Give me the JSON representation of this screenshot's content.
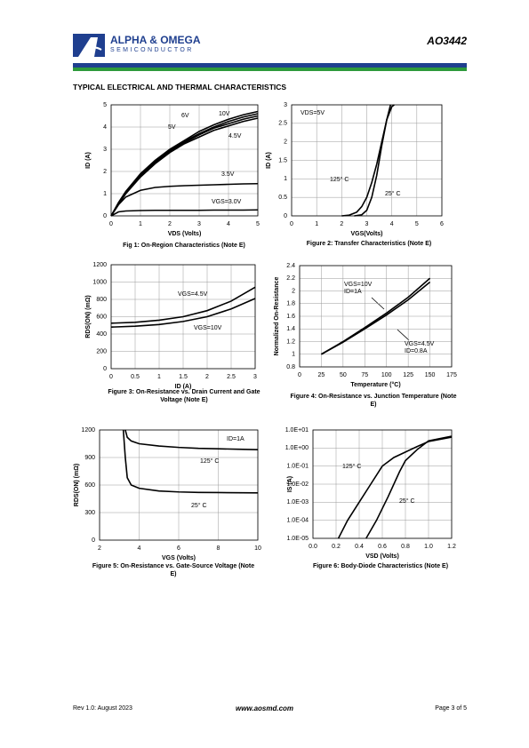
{
  "header": {
    "company": "ALPHA & OMEGA",
    "division": "SEMICONDUCTOR",
    "part": "AO3442"
  },
  "section_title": "TYPICAL ELECTRICAL AND THERMAL CHARACTERISTICS",
  "chart_data": [
    {
      "type": "line",
      "caption": "Fig 1: On-Region Characteristics (Note E)",
      "x_label": "VDS (Volts)",
      "y_label": "ID (A)",
      "xlim": [
        0,
        5
      ],
      "xticks": [
        0,
        1,
        2,
        3,
        4,
        5
      ],
      "ylim": [
        0,
        5
      ],
      "yticks": [
        0,
        1,
        2,
        3,
        4,
        5
      ],
      "grid": true,
      "annotations": [
        "6V",
        "10V",
        "5V",
        "4.5V",
        "3.5V",
        "VGS=3.0V"
      ],
      "series": [
        {
          "color": "#000000",
          "x": [
            0,
            0.25,
            0.5,
            1,
            1.5,
            2,
            2.5,
            3,
            3.5,
            4,
            4.5,
            5
          ],
          "values": [
            0,
            0.6,
            1.1,
            1.9,
            2.5,
            3.0,
            3.4,
            3.8,
            4.1,
            4.35,
            4.55,
            4.7
          ]
        },
        {
          "color": "#000000",
          "x": [
            0,
            0.25,
            0.5,
            1,
            1.5,
            2,
            2.5,
            3,
            3.5,
            4,
            4.5,
            5
          ],
          "values": [
            0,
            0.58,
            1.08,
            1.85,
            2.45,
            2.95,
            3.35,
            3.7,
            4.0,
            4.25,
            4.45,
            4.6
          ]
        },
        {
          "color": "#000000",
          "x": [
            0,
            0.25,
            0.5,
            1,
            1.5,
            2,
            2.5,
            3,
            3.5,
            4,
            4.5,
            5
          ],
          "values": [
            0,
            0.55,
            1.05,
            1.8,
            2.4,
            2.9,
            3.3,
            3.65,
            3.95,
            4.15,
            4.35,
            4.5
          ]
        },
        {
          "color": "#000000",
          "x": [
            0,
            0.25,
            0.5,
            1,
            1.5,
            2,
            2.5,
            3,
            3.5,
            4,
            4.5,
            5
          ],
          "values": [
            0,
            0.52,
            1.0,
            1.75,
            2.35,
            2.85,
            3.25,
            3.55,
            3.85,
            4.05,
            4.25,
            4.4
          ]
        },
        {
          "color": "#000000",
          "x": [
            0,
            0.25,
            0.5,
            1,
            1.5,
            2,
            2.5,
            3,
            3.5,
            4,
            4.5,
            5
          ],
          "values": [
            0,
            0.5,
            0.85,
            1.15,
            1.28,
            1.33,
            1.36,
            1.38,
            1.4,
            1.42,
            1.44,
            1.45
          ]
        },
        {
          "color": "#000000",
          "x": [
            0,
            0.25,
            0.5,
            1,
            1.5,
            2,
            2.5,
            3,
            3.5,
            4,
            4.5,
            5
          ],
          "values": [
            0,
            0.18,
            0.22,
            0.24,
            0.25,
            0.25,
            0.25,
            0.25,
            0.26,
            0.26,
            0.26,
            0.27
          ]
        }
      ]
    },
    {
      "type": "line",
      "caption": "Figure 2: Transfer Characteristics (Note E)",
      "x_label": "VGS(Volts)",
      "y_label": "ID (A)",
      "xlim": [
        0,
        6
      ],
      "xticks": [
        0,
        1,
        2,
        3,
        4,
        5,
        6
      ],
      "ylim": [
        0,
        3
      ],
      "yticks": [
        0,
        0.5,
        1,
        1.5,
        2,
        2.5,
        3
      ],
      "grid": true,
      "annotations": [
        "VDS=5V",
        "125° C",
        "25° C"
      ],
      "series": [
        {
          "color": "#000000",
          "x": [
            2,
            2.3,
            2.6,
            2.8,
            3,
            3.2,
            3.4,
            3.6,
            3.8,
            3.95
          ],
          "values": [
            0,
            0.02,
            0.1,
            0.25,
            0.5,
            0.9,
            1.4,
            2.0,
            2.6,
            3.0
          ]
        },
        {
          "color": "#000000",
          "x": [
            2.5,
            2.8,
            3,
            3.2,
            3.4,
            3.6,
            3.8,
            4.0,
            4.1
          ],
          "values": [
            0,
            0.03,
            0.15,
            0.5,
            1.1,
            1.9,
            2.6,
            2.95,
            3.0
          ]
        }
      ]
    },
    {
      "type": "line",
      "caption": "Figure 3: On-Resistance vs. Drain Current and Gate Voltage (Note E)",
      "x_label": "ID (A)",
      "y_label": "RDS(ON) (mΩ)",
      "xlim": [
        0,
        3
      ],
      "xticks": [
        0,
        0.5,
        1,
        1.5,
        2,
        2.5,
        3
      ],
      "ylim": [
        0,
        1200
      ],
      "yticks": [
        0,
        200,
        400,
        600,
        800,
        1000,
        1200
      ],
      "grid": true,
      "annotations": [
        "VGS=4.5V",
        "VGS=10V"
      ],
      "series": [
        {
          "color": "#000000",
          "x": [
            0,
            0.5,
            1,
            1.5,
            2,
            2.5,
            3
          ],
          "values": [
            525,
            535,
            560,
            600,
            670,
            780,
            940
          ]
        },
        {
          "color": "#000000",
          "x": [
            0,
            0.5,
            1,
            1.5,
            2,
            2.5,
            3
          ],
          "values": [
            480,
            490,
            510,
            545,
            600,
            690,
            810
          ]
        }
      ]
    },
    {
      "type": "line",
      "caption": "Figure 4: On-Resistance vs. Junction Temperature (Note E)",
      "x_label": "Temperature (°C)",
      "y_label": "Normalized On-Resistance",
      "xlim": [
        0,
        175
      ],
      "xticks": [
        0,
        25,
        50,
        75,
        100,
        125,
        150,
        175
      ],
      "ylim": [
        0.8,
        2.4
      ],
      "yticks": [
        0.8,
        1,
        1.2,
        1.4,
        1.6,
        1.8,
        2,
        2.2,
        2.4
      ],
      "grid": true,
      "annotations": [
        "VGS=10V",
        "ID=1A",
        "VGS=4.5V",
        "ID=0.8A"
      ],
      "series": [
        {
          "color": "#000000",
          "x": [
            25,
            50,
            75,
            100,
            125,
            150
          ],
          "values": [
            1.0,
            1.2,
            1.42,
            1.65,
            1.9,
            2.2
          ]
        },
        {
          "color": "#000000",
          "x": [
            25,
            50,
            75,
            100,
            125,
            150
          ],
          "values": [
            1.0,
            1.19,
            1.4,
            1.62,
            1.86,
            2.14
          ]
        }
      ]
    },
    {
      "type": "line",
      "caption": "Figure 5: On-Resistance vs. Gate-Source Voltage (Note E)",
      "x_label": "VGS (Volts)",
      "y_label": "RDS(ON) (mΩ)",
      "xlim": [
        2,
        10
      ],
      "xticks": [
        2,
        4,
        6,
        8,
        10
      ],
      "ylim": [
        0,
        1200
      ],
      "yticks": [
        0,
        300,
        600,
        900,
        1200
      ],
      "grid": true,
      "annotations": [
        "ID=1A",
        "125° C",
        "25° C"
      ],
      "series": [
        {
          "color": "#000000",
          "x": [
            3.3,
            3.4,
            3.6,
            4,
            5,
            6,
            7,
            8,
            9,
            10
          ],
          "values": [
            1200,
            1120,
            1080,
            1050,
            1025,
            1010,
            1000,
            995,
            990,
            985
          ]
        },
        {
          "color": "#000000",
          "x": [
            3.2,
            3.3,
            3.4,
            3.6,
            4,
            5,
            6,
            7,
            8,
            10
          ],
          "values": [
            1200,
            900,
            680,
            600,
            565,
            535,
            525,
            520,
            518,
            515
          ]
        }
      ]
    },
    {
      "type": "line",
      "caption": "Figure 6: Body-Diode Characteristics (Note E)",
      "x_label": "VSD (Volts)",
      "y_label": "IS (A)",
      "log_y": true,
      "xlim": [
        0,
        1.2
      ],
      "xticks": [
        {
          "value": 0,
          "label": "0.0"
        },
        0.2,
        0.4,
        0.6,
        0.8,
        {
          "value": 1,
          "label": "1.0"
        },
        1.2
      ],
      "ylim": [
        1e-05,
        10
      ],
      "yticks": [
        {
          "value": 10,
          "label": "1.0E+01"
        },
        {
          "value": 1,
          "label": "1.0E+00"
        },
        {
          "value": 0.1,
          "label": "1.0E-01"
        },
        {
          "value": 0.01,
          "label": "1.0E-02"
        },
        {
          "value": 0.001,
          "label": "1.0E-03"
        },
        {
          "value": 0.0001,
          "label": "1.0E-04"
        },
        {
          "value": 1e-05,
          "label": "1.0E-05"
        }
      ],
      "grid": true,
      "annotations": [
        "125° C",
        "25° C"
      ],
      "series": [
        {
          "color": "#000000",
          "x": [
            0.22,
            0.3,
            0.4,
            0.5,
            0.6,
            0.7,
            0.8,
            0.9,
            1.0,
            1.2
          ],
          "values": [
            1e-05,
            0.0001,
            0.001,
            0.01,
            0.1,
            0.3,
            0.6,
            1.2,
            2.3,
            4
          ]
        },
        {
          "color": "#000000",
          "x": [
            0.46,
            0.55,
            0.65,
            0.75,
            0.8,
            0.9,
            1.0,
            1.2
          ],
          "values": [
            1e-05,
            0.0001,
            0.002,
            0.05,
            0.2,
            0.8,
            2.5,
            4.5
          ]
        }
      ]
    }
  ],
  "footer": {
    "revision": "Rev 1.0: August 2023",
    "website": "www.aosmd.com",
    "page": "Page 3 of 5"
  }
}
